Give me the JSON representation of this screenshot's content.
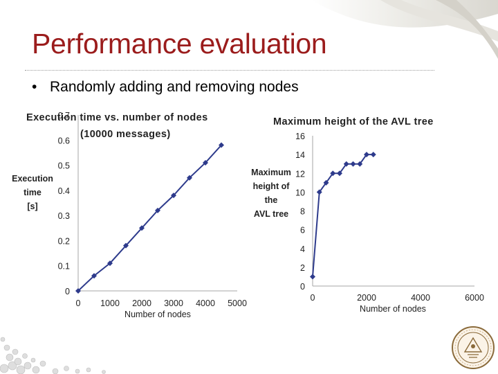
{
  "slide": {
    "title": "Performance evaluation",
    "bullet": "Randomly adding and removing nodes"
  },
  "colors": {
    "title": "#9b1c1c",
    "series": "#2e3b8c",
    "grid": "#a6a6a6"
  },
  "chart_data": [
    {
      "type": "line",
      "title": "Execution time vs. number of nodes (10000 messages)",
      "xlabel": "Number of nodes",
      "ylabel": [
        "Execution",
        "time",
        "[s]"
      ],
      "xlim": [
        0,
        5000
      ],
      "ylim": [
        0,
        0.7
      ],
      "xticks": [
        "0",
        "1000",
        "2000",
        "3000",
        "4000",
        "5000"
      ],
      "yticks": [
        "0",
        "0.1",
        "0.2",
        "0.3",
        "0.4",
        "0.5",
        "0.6",
        "0.7"
      ],
      "grid": false,
      "series": [
        {
          "points": [
            [
              0,
              0
            ],
            [
              500,
              0.06
            ],
            [
              1000,
              0.11
            ],
            [
              1500,
              0.18
            ],
            [
              2000,
              0.25
            ],
            [
              2500,
              0.32
            ],
            [
              3000,
              0.38
            ],
            [
              3500,
              0.45
            ],
            [
              4000,
              0.51
            ],
            [
              4500,
              0.58
            ]
          ]
        }
      ]
    },
    {
      "type": "line",
      "title": "Maximum height of the AVL tree",
      "xlabel": "Number of nodes",
      "ylabel": [
        "Maximum",
        "height of",
        "the",
        "AVL tree"
      ],
      "xlim": [
        0,
        6000
      ],
      "ylim": [
        0,
        16
      ],
      "xticks": [
        "0",
        "2000",
        "4000",
        "6000"
      ],
      "yticks": [
        "0",
        "2",
        "4",
        "6",
        "8",
        "10",
        "12",
        "14",
        "16"
      ],
      "grid": false,
      "series": [
        {
          "points": [
            [
              0,
              1
            ],
            [
              250,
              10
            ],
            [
              500,
              11
            ],
            [
              750,
              12
            ],
            [
              1000,
              12
            ],
            [
              1250,
              13
            ],
            [
              1500,
              13
            ],
            [
              1750,
              13
            ],
            [
              2000,
              14
            ],
            [
              2250,
              14
            ]
          ]
        }
      ]
    }
  ]
}
